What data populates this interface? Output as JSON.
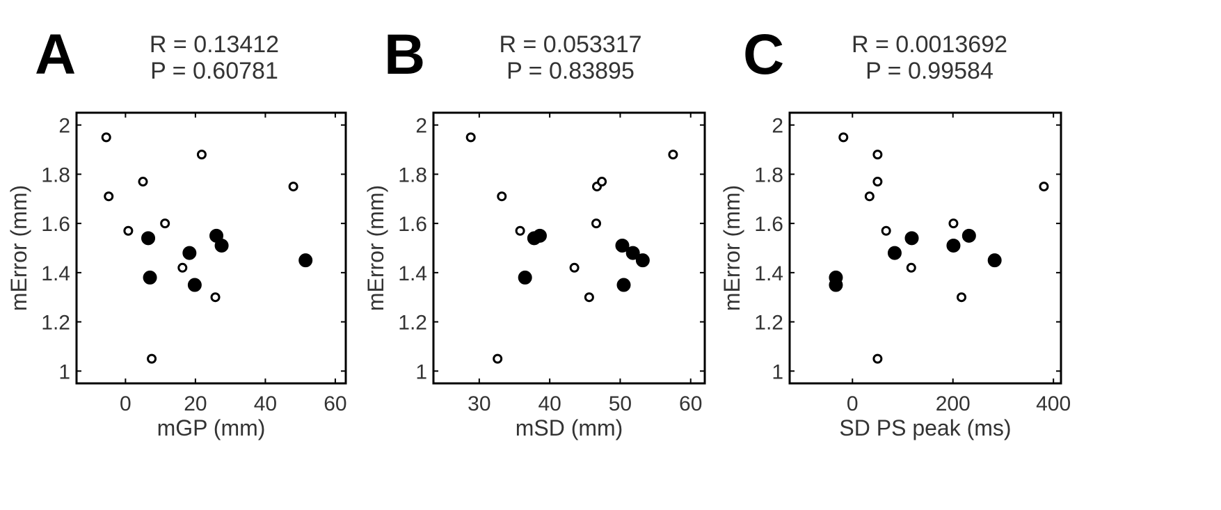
{
  "chart_data": [
    {
      "type": "scatter",
      "panel_label": "A",
      "stats": [
        "R = 0.13412",
        "P =  0.60781"
      ],
      "xlabel": "mGP (mm)",
      "ylabel": "mError (mm)",
      "xlim": [
        -14,
        63
      ],
      "ylim": [
        0.95,
        2.05
      ],
      "xticks": [
        0,
        20,
        40,
        60
      ],
      "yticks": [
        1,
        1.2,
        1.4,
        1.6,
        1.8,
        2
      ],
      "grid": false,
      "series": [
        {
          "marker": "filled",
          "points": [
            [
              6.5,
              1.54
            ],
            [
              7,
              1.38
            ],
            [
              18.3,
              1.48
            ],
            [
              19.8,
              1.35
            ],
            [
              26,
              1.55
            ],
            [
              27.5,
              1.51
            ],
            [
              51.5,
              1.45
            ]
          ]
        },
        {
          "marker": "open",
          "points": [
            [
              -5.5,
              1.95
            ],
            [
              -4.8,
              1.71
            ],
            [
              0.8,
              1.57
            ],
            [
              5,
              1.77
            ],
            [
              7.5,
              1.05
            ],
            [
              11.3,
              1.6
            ],
            [
              16.3,
              1.42
            ],
            [
              21.8,
              1.88
            ],
            [
              25.7,
              1.3
            ],
            [
              48,
              1.75
            ]
          ]
        }
      ]
    },
    {
      "type": "scatter",
      "panel_label": "B",
      "stats": [
        "R = 0.053317",
        "P =  0.83895"
      ],
      "xlabel": "mSD (mm)",
      "ylabel": "mError (mm)",
      "xlim": [
        23.5,
        62
      ],
      "ylim": [
        0.95,
        2.05
      ],
      "xticks": [
        30,
        40,
        50,
        60
      ],
      "yticks": [
        1,
        1.2,
        1.4,
        1.6,
        1.8,
        2
      ],
      "grid": false,
      "series": [
        {
          "marker": "filled",
          "points": [
            [
              36.5,
              1.38
            ],
            [
              37.8,
              1.54
            ],
            [
              38.6,
              1.55
            ],
            [
              50.3,
              1.51
            ],
            [
              50.5,
              1.35
            ],
            [
              51.8,
              1.48
            ],
            [
              53.2,
              1.45
            ]
          ]
        },
        {
          "marker": "open",
          "points": [
            [
              28.8,
              1.95
            ],
            [
              32.6,
              1.05
            ],
            [
              33.2,
              1.71
            ],
            [
              35.8,
              1.57
            ],
            [
              43.5,
              1.42
            ],
            [
              45.6,
              1.3
            ],
            [
              46.6,
              1.6
            ],
            [
              46.7,
              1.75
            ],
            [
              47.4,
              1.77
            ],
            [
              57.5,
              1.88
            ]
          ]
        }
      ]
    },
    {
      "type": "scatter",
      "panel_label": "C",
      "stats": [
        "R = 0.0013692",
        "P =  0.99584"
      ],
      "xlabel": "SD PS peak (ms)",
      "ylabel": "mError (mm)",
      "xlim": [
        -125,
        415
      ],
      "ylim": [
        0.95,
        2.05
      ],
      "xticks": [
        0,
        200,
        400
      ],
      "yticks": [
        1,
        1.2,
        1.4,
        1.6,
        1.8,
        2
      ],
      "grid": false,
      "series": [
        {
          "marker": "filled",
          "points": [
            [
              -33,
              1.38
            ],
            [
              -33,
              1.35
            ],
            [
              84,
              1.48
            ],
            [
              118,
              1.54
            ],
            [
              201,
              1.51
            ],
            [
              232,
              1.55
            ],
            [
              283,
              1.45
            ]
          ]
        },
        {
          "marker": "open",
          "points": [
            [
              -18,
              1.95
            ],
            [
              34,
              1.71
            ],
            [
              50,
              1.88
            ],
            [
              50,
              1.77
            ],
            [
              50,
              1.05
            ],
            [
              67,
              1.57
            ],
            [
              117,
              1.42
            ],
            [
              201,
              1.6
            ],
            [
              217,
              1.3
            ],
            [
              381,
              1.75
            ]
          ]
        }
      ]
    }
  ]
}
